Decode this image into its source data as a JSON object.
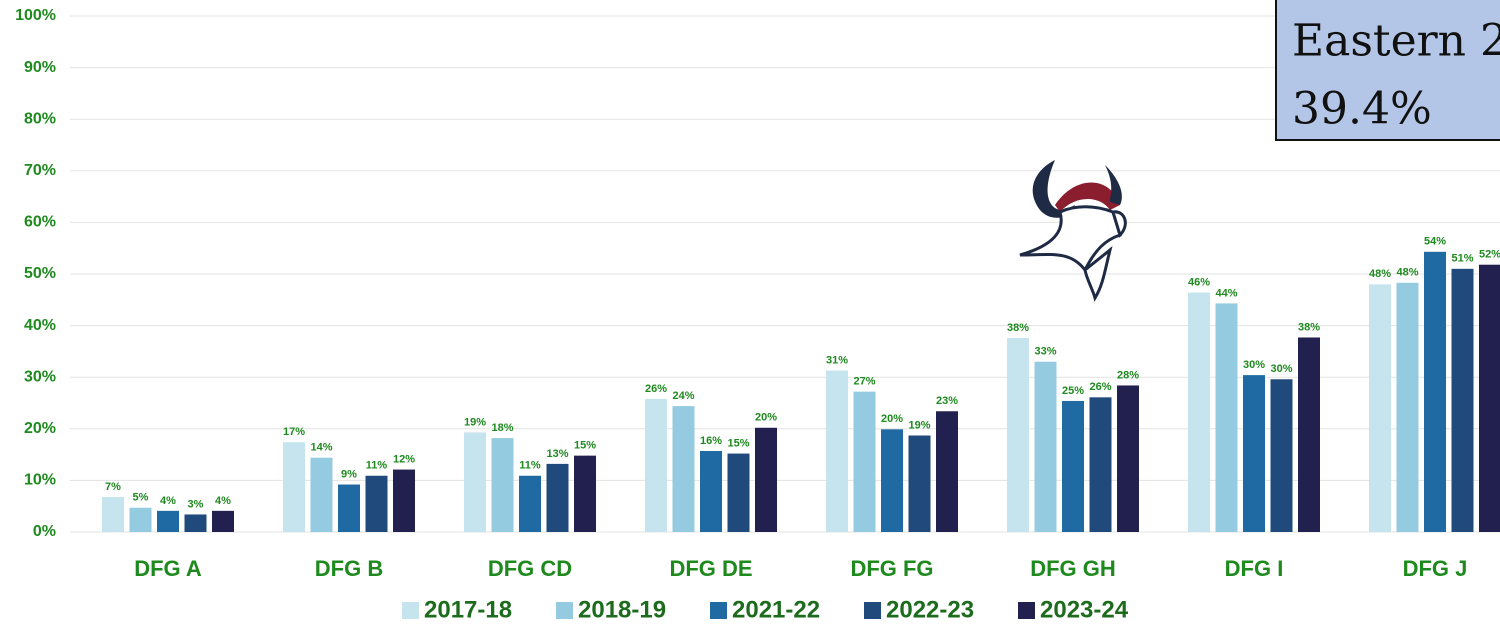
{
  "chart_data": {
    "type": "bar",
    "categories": [
      "DFG A",
      "DFG B",
      "DFG CD",
      "DFG DE",
      "DFG FG",
      "DFG GH",
      "DFG I",
      "DFG J"
    ],
    "series": [
      {
        "name": "2017-18",
        "color": "#c5e4ee",
        "values": [
          6.8,
          17.4,
          19.3,
          25.8,
          31.3,
          37.6,
          46.4,
          48.0
        ],
        "value_labels": [
          "7%",
          "17%",
          "19%",
          "26%",
          "31%",
          "38%",
          "46%",
          "48%"
        ]
      },
      {
        "name": "2018-19",
        "color": "#94cbe0",
        "values": [
          4.7,
          14.4,
          18.2,
          24.4,
          27.2,
          33.0,
          44.3,
          48.3
        ],
        "value_labels": [
          "5%",
          "14%",
          "18%",
          "24%",
          "27%",
          "33%",
          "44%",
          "48%"
        ]
      },
      {
        "name": "2021-22",
        "color": "#1f6aa3",
        "values": [
          4.1,
          9.2,
          10.9,
          15.7,
          19.9,
          25.4,
          30.4,
          54.3
        ],
        "value_labels": [
          "4%",
          "9%",
          "11%",
          "16%",
          "20%",
          "25%",
          "30%",
          "54%"
        ]
      },
      {
        "name": "2022-23",
        "color": "#214a7c",
        "values": [
          3.4,
          10.9,
          13.2,
          15.2,
          18.7,
          26.1,
          29.6,
          51.0
        ],
        "value_labels": [
          "3%",
          "11%",
          "13%",
          "15%",
          "19%",
          "26%",
          "30%",
          "51%"
        ]
      },
      {
        "name": "2023-24",
        "color": "#22204f",
        "values": [
          4.1,
          12.1,
          14.8,
          20.2,
          23.4,
          28.4,
          37.7,
          51.8
        ],
        "value_labels": [
          "4%",
          "12%",
          "15%",
          "20%",
          "23%",
          "28%",
          "38%",
          "52%"
        ]
      }
    ],
    "ylim": [
      0,
      100
    ],
    "yticks": [
      {
        "value": 0,
        "label": "0%"
      },
      {
        "value": 10,
        "label": "10%"
      },
      {
        "value": 20,
        "label": "20%"
      },
      {
        "value": 30,
        "label": "30%"
      },
      {
        "value": 40,
        "label": "40%"
      },
      {
        "value": 50,
        "label": "50%"
      },
      {
        "value": 60,
        "label": "60%"
      },
      {
        "value": 70,
        "label": "70%"
      },
      {
        "value": 80,
        "label": "80%"
      },
      {
        "value": 90,
        "label": "90%"
      },
      {
        "value": 100,
        "label": "100%"
      }
    ],
    "grid": true,
    "annotation": {
      "line1": "Eastern 2",
      "line2": "39.4%"
    }
  }
}
